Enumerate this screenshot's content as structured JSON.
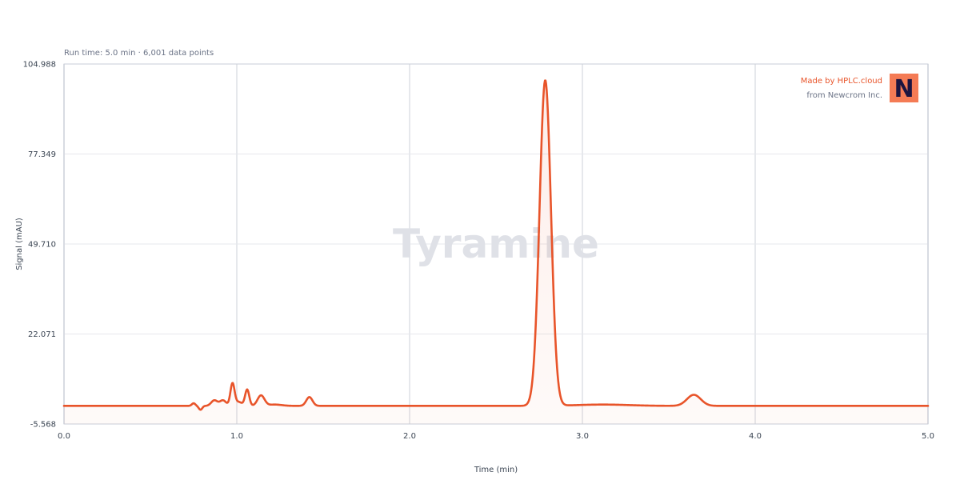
{
  "subtitle": "Run time: 5.0 min · 6,001 data points",
  "watermark": "Tyramine",
  "brand": {
    "made_by": "Made by HPLC.cloud",
    "from": "from Newcrom Inc.",
    "logo_letter": "N",
    "logo_color": "#f47b55"
  },
  "colors": {
    "trace": "#e8542a",
    "grid": "#e6e8ec",
    "axis": "#c9ced8"
  },
  "chart_data": {
    "type": "line",
    "xlabel": "Time (min)",
    "ylabel": "Signal (mAU)",
    "xlim": [
      0.0,
      5.0
    ],
    "ylim": [
      -5.568,
      104.988
    ],
    "x_ticks": [
      "0.0",
      "1.0",
      "2.0",
      "3.0",
      "4.0",
      "5.0"
    ],
    "y_ticks": [
      "-5.568",
      "22.071",
      "49.710",
      "77.349",
      "104.988"
    ],
    "grid": true,
    "baseline": 0,
    "peaks": [
      {
        "rt": 0.75,
        "height": 0.8,
        "width": 0.01
      },
      {
        "rt": 0.79,
        "height": -1.2,
        "width": 0.01
      },
      {
        "rt": 0.87,
        "height": 1.7,
        "width": 0.018
      },
      {
        "rt": 0.92,
        "height": 1.7,
        "width": 0.018
      },
      {
        "rt": 0.975,
        "height": 6.8,
        "width": 0.012
      },
      {
        "rt": 1.01,
        "height": 1.2,
        "width": 0.02
      },
      {
        "rt": 1.06,
        "height": 5.0,
        "width": 0.012
      },
      {
        "rt": 1.14,
        "height": 3.2,
        "width": 0.02
      },
      {
        "rt": 1.22,
        "height": 0.4,
        "width": 0.04
      },
      {
        "rt": 1.42,
        "height": 2.7,
        "width": 0.018
      },
      {
        "rt": 2.785,
        "height": 100.0,
        "width": 0.033
      },
      {
        "rt": 3.12,
        "height": 0.4,
        "width": 0.15
      },
      {
        "rt": 3.645,
        "height": 3.4,
        "width": 0.04
      }
    ]
  }
}
